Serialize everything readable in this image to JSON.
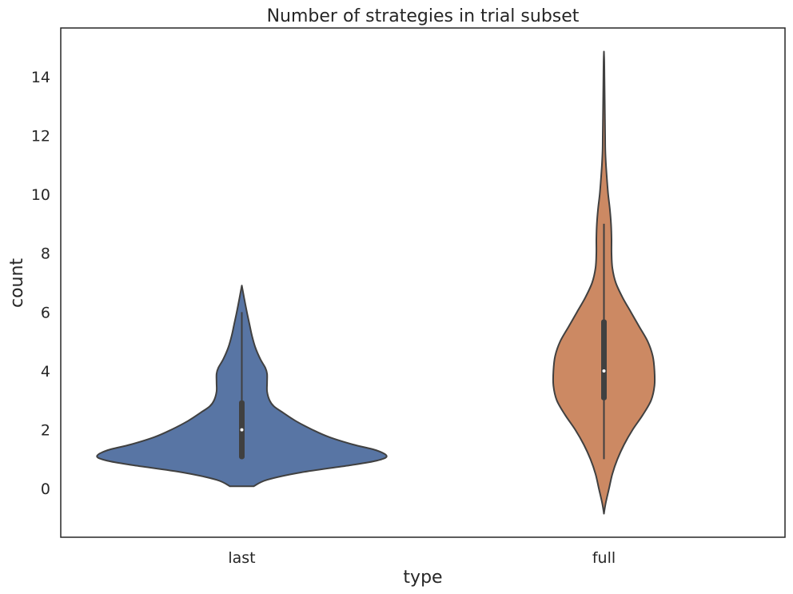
{
  "chart_data": {
    "type": "violin",
    "title": "Number of strategies in trial subset",
    "xlabel": "type",
    "ylabel": "count",
    "ylim": [
      -1.65,
      15.65
    ],
    "yticks": [
      0,
      2,
      4,
      6,
      8,
      10,
      12,
      14
    ],
    "categories": [
      "last",
      "full"
    ],
    "grid": false,
    "series": [
      {
        "category": "last",
        "color": "#5875a4",
        "min": 1,
        "q1": 1,
        "median": 2,
        "q3": 3,
        "max": 6,
        "density_extent": [
          0.08,
          6.9
        ],
        "density": [
          [
            0.08,
            0.07
          ],
          [
            0.3,
            0.15
          ],
          [
            0.55,
            0.35
          ],
          [
            0.8,
            0.65
          ],
          [
            0.95,
            0.8
          ],
          [
            1.1,
            0.86
          ],
          [
            1.3,
            0.8
          ],
          [
            1.5,
            0.66
          ],
          [
            1.75,
            0.52
          ],
          [
            2.0,
            0.42
          ],
          [
            2.3,
            0.32
          ],
          [
            2.6,
            0.24
          ],
          [
            2.8,
            0.19
          ],
          [
            3.0,
            0.165
          ],
          [
            3.3,
            0.15
          ],
          [
            3.6,
            0.15
          ],
          [
            3.9,
            0.15
          ],
          [
            4.1,
            0.14
          ],
          [
            4.4,
            0.11
          ],
          [
            4.8,
            0.08
          ],
          [
            5.2,
            0.06
          ],
          [
            5.6,
            0.045
          ],
          [
            6.0,
            0.03
          ],
          [
            6.5,
            0.013
          ],
          [
            6.9,
            0.0
          ]
        ]
      },
      {
        "category": "full",
        "color": "#cc8963",
        "min": 1,
        "q1": 3,
        "median": 4,
        "q3": 5.75,
        "max": 9,
        "density_extent": [
          -0.85,
          14.85
        ],
        "density": [
          [
            -0.85,
            0.0
          ],
          [
            -0.5,
            0.01
          ],
          [
            0,
            0.03
          ],
          [
            0.5,
            0.05
          ],
          [
            1.0,
            0.08
          ],
          [
            1.5,
            0.12
          ],
          [
            2.0,
            0.17
          ],
          [
            2.5,
            0.23
          ],
          [
            3.0,
            0.28
          ],
          [
            3.5,
            0.3
          ],
          [
            4.0,
            0.3
          ],
          [
            4.5,
            0.29
          ],
          [
            5.0,
            0.26
          ],
          [
            5.5,
            0.21
          ],
          [
            6.0,
            0.16
          ],
          [
            6.5,
            0.11
          ],
          [
            7.0,
            0.07
          ],
          [
            7.5,
            0.05
          ],
          [
            8.0,
            0.045
          ],
          [
            8.5,
            0.045
          ],
          [
            9.0,
            0.042
          ],
          [
            9.5,
            0.035
          ],
          [
            10.0,
            0.025
          ],
          [
            10.5,
            0.018
          ],
          [
            11.0,
            0.012
          ],
          [
            11.5,
            0.008
          ],
          [
            12.0,
            0.007
          ],
          [
            12.5,
            0.006
          ],
          [
            13.0,
            0.005
          ],
          [
            13.5,
            0.004
          ],
          [
            14.0,
            0.003
          ],
          [
            14.5,
            0.002
          ],
          [
            14.85,
            0.0
          ]
        ]
      }
    ]
  }
}
